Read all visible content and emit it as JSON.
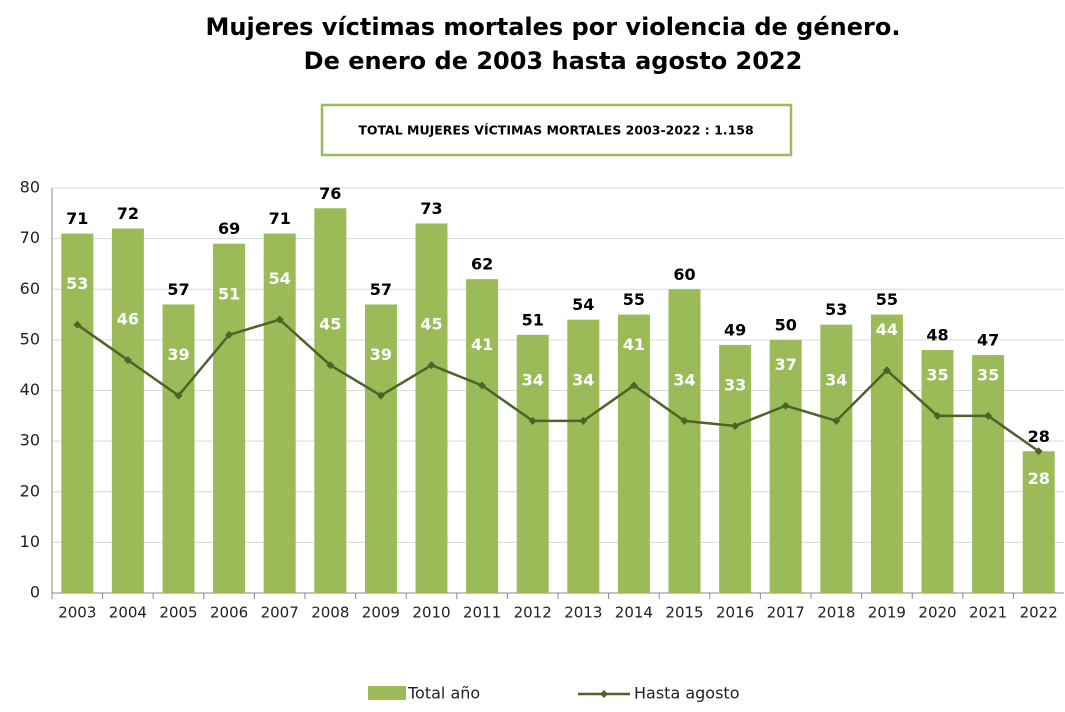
{
  "chart_data": {
    "type": "bar_line",
    "title": "Mujeres víctimas mortales por violencia de género.",
    "subtitle": "De enero de 2003 hasta agosto 2022",
    "annotation": "TOTAL MUJERES VÍCTIMAS MORTALES 2003-2022 : 1.158",
    "categories": [
      "2003",
      "2004",
      "2005",
      "2006",
      "2007",
      "2008",
      "2009",
      "2010",
      "2011",
      "2012",
      "2013",
      "2014",
      "2015",
      "2016",
      "2017",
      "2018",
      "2019",
      "2020",
      "2021",
      "2022"
    ],
    "series": [
      {
        "name": "Total año",
        "color": "#9bbb59",
        "values": [
          71,
          72,
          57,
          69,
          71,
          76,
          57,
          73,
          62,
          51,
          54,
          55,
          60,
          49,
          50,
          53,
          55,
          48,
          47,
          28
        ]
      },
      {
        "name": "Hasta agosto",
        "color": "#4f6228",
        "values": [
          53,
          46,
          39,
          51,
          54,
          45,
          39,
          45,
          41,
          34,
          34,
          41,
          34,
          33,
          37,
          34,
          44,
          35,
          35,
          28
        ]
      }
    ],
    "ylim": [
      0,
      80
    ],
    "yticks": [
      0,
      10,
      20,
      30,
      40,
      50,
      60,
      70,
      80
    ],
    "grid": true,
    "legend": "bottom"
  }
}
